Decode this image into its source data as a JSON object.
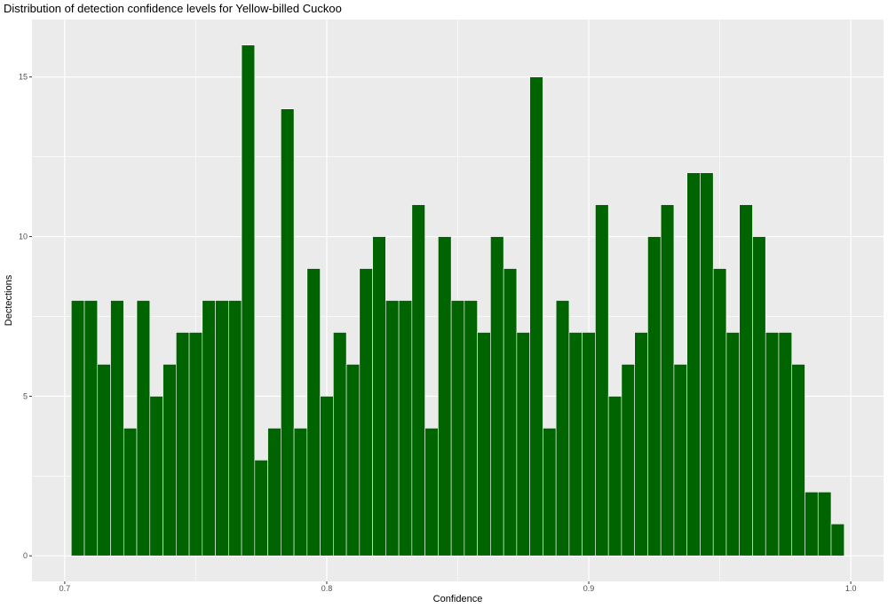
{
  "chart_data": {
    "type": "bar",
    "title": "Distribution of detection confidence levels for Yellow-billed Cuckoo",
    "xlabel": "Confidence",
    "ylabel": "Dectections",
    "xlim": [
      0.6875,
      1.0125
    ],
    "ylim": [
      -0.8,
      16.8
    ],
    "bin_width": 0.005,
    "x": [
      0.705,
      0.71,
      0.715,
      0.72,
      0.725,
      0.73,
      0.735,
      0.74,
      0.745,
      0.75,
      0.755,
      0.76,
      0.765,
      0.77,
      0.775,
      0.78,
      0.785,
      0.79,
      0.795,
      0.8,
      0.805,
      0.81,
      0.815,
      0.82,
      0.825,
      0.83,
      0.835,
      0.84,
      0.845,
      0.85,
      0.855,
      0.86,
      0.865,
      0.87,
      0.875,
      0.88,
      0.885,
      0.89,
      0.895,
      0.9,
      0.905,
      0.91,
      0.915,
      0.92,
      0.925,
      0.93,
      0.935,
      0.94,
      0.945,
      0.95,
      0.955,
      0.96,
      0.965,
      0.97,
      0.975,
      0.98,
      0.985,
      0.99,
      0.995
    ],
    "values": [
      8,
      8,
      6,
      8,
      4,
      8,
      5,
      6,
      7,
      7,
      8,
      8,
      8,
      16,
      3,
      4,
      14,
      4,
      9,
      5,
      7,
      6,
      9,
      10,
      8,
      8,
      11,
      4,
      10,
      8,
      8,
      7,
      10,
      9,
      7,
      15,
      4,
      8,
      7,
      7,
      11,
      5,
      6,
      7,
      10,
      11,
      6,
      12,
      12,
      9,
      7,
      11,
      10,
      7,
      7,
      6,
      2,
      2,
      1
    ],
    "x_ticks": [
      0.7,
      0.8,
      0.9,
      1.0
    ],
    "x_tick_labels": [
      "0.7",
      "0.8",
      "0.9",
      "1.0"
    ],
    "y_ticks": [
      0,
      5,
      10,
      15
    ],
    "y_tick_labels": [
      "0",
      "5",
      "10",
      "15"
    ],
    "bar_color": "#006400",
    "bar_outline": "#ffffff",
    "panel_background": "#ebebeb",
    "grid_color": "#ffffff",
    "grid": true,
    "legend": "none"
  }
}
